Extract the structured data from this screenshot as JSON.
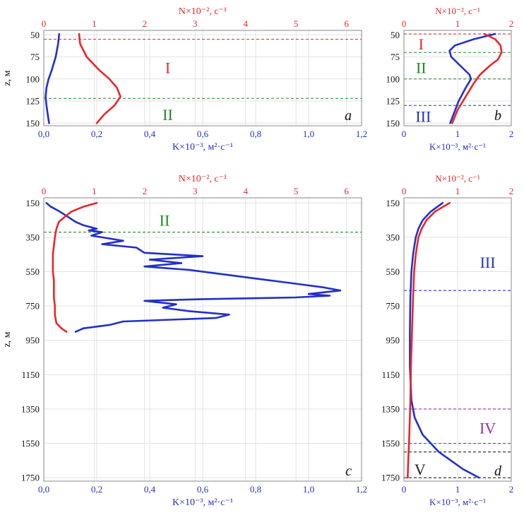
{
  "colors": {
    "N": "#e8262a",
    "K": "#2230c8",
    "zone_I": "#e8262a",
    "zone_II": "#1e8a1e",
    "zone_III": "#2230c8",
    "zone_IV": "#9a2ea8",
    "zone_V": "#222222"
  },
  "chart_data": [
    {
      "id": "a",
      "type": "line",
      "panel_label": "a",
      "y_label": "z, м",
      "x_bottom_label": "K×10⁻³, м²·с⁻¹",
      "x_top_label": "N×10⁻², с⁻¹",
      "y_ticks": [
        "50",
        "75",
        "100",
        "125",
        "150"
      ],
      "x_bottom_ticks": [
        "0,0",
        "0,2",
        "0,4",
        "0,6",
        "0,8",
        "1,0",
        "1,2"
      ],
      "x_top_ticks": [
        "0",
        "1",
        "2",
        "3",
        "4",
        "5",
        "6"
      ],
      "ylim": [
        45,
        153
      ],
      "x_bottom_lim": [
        0,
        1.2
      ],
      "x_top_lim": [
        0,
        6.3
      ],
      "series": [
        {
          "axis": "bottom",
          "color_key": "K",
          "z": [
            49,
            60,
            75,
            90,
            100,
            110,
            120,
            130,
            140,
            150
          ],
          "values": [
            0.058,
            0.054,
            0.045,
            0.03,
            0.018,
            0.01,
            0.007,
            0.01,
            0.015,
            0.02
          ]
        },
        {
          "axis": "top",
          "color_key": "N",
          "z": [
            49,
            60,
            75,
            90,
            100,
            110,
            120,
            130,
            140,
            150
          ],
          "values": [
            0.7,
            0.72,
            0.85,
            1.1,
            1.3,
            1.45,
            1.52,
            1.4,
            1.2,
            1.05
          ]
        }
      ],
      "boundaries": [
        {
          "z": 55,
          "color_key": "zone_I"
        },
        {
          "z": 122,
          "color_key": "zone_II"
        }
      ],
      "zones": [
        {
          "label": "I",
          "z": 87,
          "x_frac": 0.39,
          "color_key": "zone_I"
        },
        {
          "label": "II",
          "z": 140,
          "x_frac": 0.39,
          "color_key": "zone_II"
        }
      ]
    },
    {
      "id": "b",
      "type": "line",
      "panel_label": "b",
      "y_label": "",
      "x_bottom_label": "K×10⁻³, м²·с⁻¹",
      "x_top_label": "N×10⁻², с⁻¹",
      "y_ticks": [
        "50",
        "75",
        "100",
        "125",
        "150"
      ],
      "x_bottom_ticks": [
        "0",
        "1",
        "2"
      ],
      "x_top_ticks": [
        "0",
        "1",
        "2"
      ],
      "ylim": [
        45,
        153
      ],
      "x_bottom_lim": [
        0,
        2
      ],
      "x_top_lim": [
        0,
        2
      ],
      "series": [
        {
          "axis": "bottom",
          "color_key": "K",
          "z": [
            49,
            55,
            62,
            68,
            75,
            85,
            95,
            100,
            110,
            125,
            150
          ],
          "values": [
            1.7,
            1.3,
            0.95,
            0.85,
            0.88,
            1.05,
            1.22,
            1.25,
            1.15,
            1.02,
            0.86
          ]
        },
        {
          "axis": "top",
          "color_key": "N",
          "z": [
            49,
            55,
            62,
            70,
            78,
            85,
            95,
            105,
            120,
            135,
            150
          ],
          "values": [
            1.5,
            1.7,
            1.8,
            1.82,
            1.75,
            1.6,
            1.42,
            1.3,
            1.15,
            1.0,
            0.9
          ]
        }
      ],
      "boundaries": [
        {
          "z": 49,
          "color_key": "zone_I"
        },
        {
          "z": 70,
          "color_key": "zone_II"
        },
        {
          "z": 100,
          "color_key": "zone_II"
        },
        {
          "z": 130,
          "color_key": "zone_III"
        }
      ],
      "zones": [
        {
          "label": "I",
          "z": 60,
          "x_frac": 0.16,
          "color_key": "zone_I"
        },
        {
          "label": "II",
          "z": 87,
          "x_frac": 0.16,
          "color_key": "zone_II"
        },
        {
          "label": "III",
          "z": 142,
          "x_frac": 0.18,
          "color_key": "zone_III"
        }
      ]
    },
    {
      "id": "c",
      "type": "line",
      "panel_label": "c",
      "y_label": "z, м",
      "x_bottom_label": "K×10⁻³, м²·с⁻¹",
      "x_top_label": "N×10⁻², с⁻¹",
      "y_ticks": [
        "150",
        "350",
        "550",
        "750",
        "950",
        "1150",
        "1350",
        "1550",
        "1750"
      ],
      "x_bottom_ticks": [
        "0,0",
        "0,2",
        "0,4",
        "0,6",
        "0,8",
        "1,0",
        "1,2"
      ],
      "x_top_ticks": [
        "0",
        "1",
        "2",
        "3",
        "4",
        "5",
        "6"
      ],
      "ylim": [
        120,
        1770
      ],
      "x_bottom_lim": [
        0,
        1.2
      ],
      "x_top_lim": [
        0,
        6.3
      ],
      "series": [
        {
          "axis": "bottom",
          "color_key": "K",
          "z": [
            150,
            170,
            200,
            230,
            260,
            280,
            300,
            310,
            320,
            340,
            355,
            370,
            390,
            410,
            440,
            460,
            480,
            500,
            520,
            540,
            560,
            580,
            600,
            620,
            640,
            660,
            680,
            690,
            700,
            710,
            720,
            740,
            760,
            780,
            800,
            820,
            840,
            860,
            880,
            900
          ],
          "values": [
            0.01,
            0.025,
            0.06,
            0.09,
            0.12,
            0.15,
            0.2,
            0.17,
            0.22,
            0.18,
            0.24,
            0.3,
            0.22,
            0.35,
            0.38,
            0.6,
            0.4,
            0.52,
            0.38,
            0.55,
            0.65,
            0.75,
            0.85,
            0.95,
            1.05,
            1.12,
            1.0,
            1.08,
            0.95,
            0.6,
            0.38,
            0.5,
            0.45,
            0.55,
            0.7,
            0.65,
            0.3,
            0.25,
            0.15,
            0.12
          ]
        },
        {
          "axis": "top",
          "color_key": "N",
          "z": [
            150,
            170,
            200,
            230,
            260,
            300,
            350,
            400,
            450,
            500,
            550,
            600,
            650,
            700,
            750,
            800,
            850,
            880,
            900
          ],
          "values": [
            1.05,
            0.8,
            0.55,
            0.42,
            0.3,
            0.25,
            0.22,
            0.2,
            0.18,
            0.18,
            0.18,
            0.2,
            0.2,
            0.2,
            0.22,
            0.22,
            0.25,
            0.35,
            0.45
          ]
        }
      ],
      "boundaries": [
        {
          "z": 320,
          "color_key": "zone_II"
        }
      ],
      "zones": [
        {
          "label": "II",
          "z": 250,
          "x_frac": 0.38,
          "color_key": "zone_II"
        }
      ]
    },
    {
      "id": "d",
      "type": "line",
      "panel_label": "d",
      "y_label": "",
      "x_bottom_label": "K×10⁻³, м²·с⁻¹",
      "x_top_label": "N×10⁻², с⁻¹",
      "y_ticks": [
        "150",
        "350",
        "550",
        "750",
        "950",
        "1150",
        "1350",
        "1550",
        "1750"
      ],
      "x_bottom_ticks": [
        "0",
        "1",
        "2"
      ],
      "x_top_ticks": [
        "0",
        "1",
        "2"
      ],
      "ylim": [
        120,
        1770
      ],
      "x_bottom_lim": [
        0,
        2
      ],
      "x_top_lim": [
        0,
        2
      ],
      "series": [
        {
          "axis": "bottom",
          "color_key": "K",
          "z": [
            150,
            200,
            250,
            300,
            350,
            450,
            550,
            700,
            900,
            1100,
            1300,
            1400,
            1500,
            1600,
            1700,
            1750
          ],
          "values": [
            0.72,
            0.5,
            0.35,
            0.27,
            0.22,
            0.17,
            0.14,
            0.12,
            0.11,
            0.11,
            0.14,
            0.2,
            0.35,
            0.65,
            1.1,
            1.4
          ]
        },
        {
          "axis": "top",
          "color_key": "N",
          "z": [
            150,
            200,
            250,
            300,
            350,
            450,
            550,
            700,
            900,
            1100,
            1300,
            1500,
            1650,
            1750
          ],
          "values": [
            0.85,
            0.58,
            0.42,
            0.33,
            0.27,
            0.22,
            0.19,
            0.17,
            0.15,
            0.13,
            0.12,
            0.1,
            0.08,
            0.07
          ]
        }
      ],
      "boundaries": [
        {
          "z": 660,
          "color_key": "zone_III"
        },
        {
          "z": 1350,
          "color_key": "zone_IV"
        },
        {
          "z": 1550,
          "color_key": "zone_IV"
        },
        {
          "z": 1600,
          "color_key": "zone_V"
        },
        {
          "z": 1750,
          "color_key": "zone_V"
        }
      ],
      "zones": [
        {
          "label": "III",
          "z": 495,
          "x_frac": 0.78,
          "color_key": "zone_III"
        },
        {
          "label": "IV",
          "z": 1460,
          "x_frac": 0.78,
          "color_key": "zone_IV"
        },
        {
          "label": "V",
          "z": 1700,
          "x_frac": 0.15,
          "color_key": "zone_V"
        }
      ]
    }
  ]
}
